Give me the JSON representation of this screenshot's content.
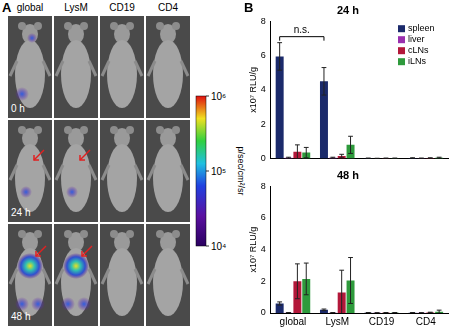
{
  "figure_labels": [
    "A",
    "B"
  ],
  "image_panel": {
    "columns": [
      "global",
      "LysM",
      "CD19",
      "CD4"
    ],
    "rows": [
      "0 h",
      "24 h",
      "48 h"
    ],
    "colorbar": {
      "label": "p/sec/cm²/sr",
      "log": true,
      "range": [
        10000,
        1000000
      ],
      "ticks": [
        {
          "value": 1000000,
          "label": "10⁶"
        },
        {
          "value": 100000,
          "label": "10⁵"
        },
        {
          "value": 10000,
          "label": "10⁴"
        }
      ]
    }
  },
  "chart_data": [
    {
      "type": "bar",
      "title": "24 h",
      "y_label": "x10⁷ RLU/g",
      "categories": [
        "global",
        "LysM",
        "CD19",
        "CD4"
      ],
      "series": [
        {
          "name": "spleen",
          "color": "#1b2a6b",
          "values": [
            5.95,
            4.5,
            0.02,
            0.03
          ],
          "errors": [
            0.8,
            0.8,
            0.01,
            0.02
          ]
        },
        {
          "name": "liver",
          "color": "#9a2fae",
          "values": [
            0.05,
            0.05,
            0.01,
            0.02
          ],
          "errors": [
            0.03,
            0.03,
            0.01,
            0.01
          ]
        },
        {
          "name": "cLNs",
          "color": "#b3183a",
          "values": [
            0.4,
            0.15,
            0.02,
            0.03
          ],
          "errors": [
            0.4,
            0.1,
            0.01,
            0.02
          ]
        },
        {
          "name": "iLNs",
          "color": "#2e9a3c",
          "values": [
            0.35,
            0.8,
            0.02,
            0.05
          ],
          "errors": [
            0.3,
            0.5,
            0.01,
            0.03
          ]
        }
      ],
      "ylim": [
        0,
        8
      ],
      "yticks": [
        0,
        2,
        4,
        6,
        8
      ],
      "grid": false,
      "legend": "upper right",
      "tick_labels": "y",
      "annotations": [
        {
          "text": "n.s.",
          "categories": [
            "global",
            "LysM"
          ],
          "series": "spleen"
        }
      ]
    },
    {
      "type": "bar",
      "title": "48 h",
      "y_label": "x10⁷ RLU/g",
      "categories": [
        "global",
        "LysM",
        "CD19",
        "CD4"
      ],
      "series": [
        {
          "name": "spleen",
          "color": "#1b2a6b",
          "values": [
            0.6,
            0.2,
            0.02,
            0.02
          ],
          "errors": [
            0.1,
            0.05,
            0.01,
            0.01
          ]
        },
        {
          "name": "liver",
          "color": "#9a2fae",
          "values": [
            0.02,
            0.02,
            0.01,
            0.01
          ],
          "errors": [
            0.01,
            0.01,
            0.01,
            0.01
          ]
        },
        {
          "name": "cLNs",
          "color": "#b3183a",
          "values": [
            2.0,
            1.3,
            0.02,
            0.03
          ],
          "errors": [
            1.1,
            1.4,
            0.01,
            0.02
          ]
        },
        {
          "name": "iLNs",
          "color": "#2e9a3c",
          "values": [
            2.15,
            2.05,
            0.02,
            0.08
          ],
          "errors": [
            1.0,
            1.45,
            0.01,
            0.1
          ]
        }
      ],
      "ylim": [
        0,
        8
      ],
      "yticks": [
        0,
        2,
        4,
        6,
        8
      ],
      "grid": false
    }
  ]
}
